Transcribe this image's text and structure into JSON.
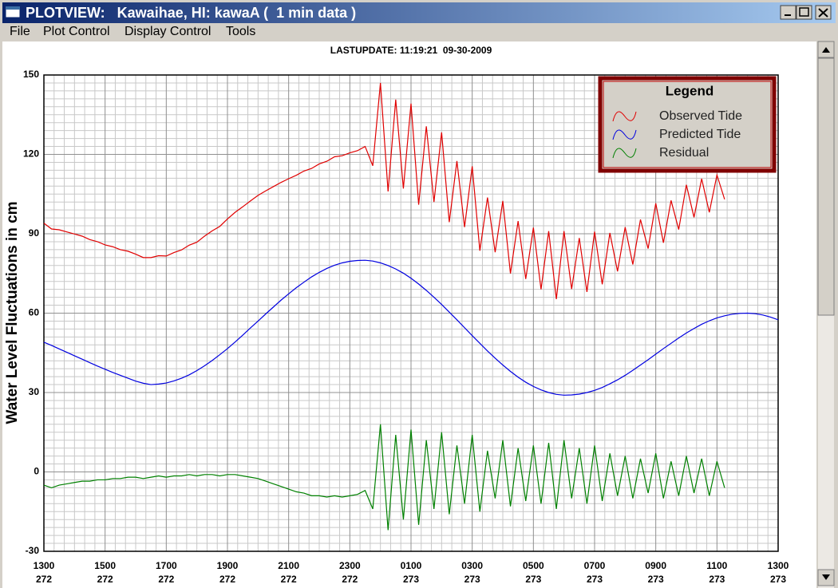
{
  "window": {
    "title": "PLOTVIEW:   Kawaihae, HI: kawaA (  1 min data )",
    "menu": [
      "File",
      "Plot Control",
      "Display Control",
      "Tools"
    ]
  },
  "chart_data": {
    "type": "line",
    "subtitle": "LASTUPDATE: 11:19:21  09-30-2009",
    "y_label": "Water Level Fluctuations in cm",
    "legend_title": "Legend",
    "legend": "upper right",
    "grid": true,
    "minor_grid": true,
    "xlim": [
      0,
      24
    ],
    "ylim": [
      -30,
      150
    ],
    "xticks": [
      {
        "value": 0,
        "label": "1300\n272"
      },
      {
        "value": 2,
        "label": "1500\n272"
      },
      {
        "value": 4,
        "label": "1700\n272"
      },
      {
        "value": 6,
        "label": "1900\n272"
      },
      {
        "value": 8,
        "label": "2100\n272"
      },
      {
        "value": 10,
        "label": "2300\n272"
      },
      {
        "value": 12,
        "label": "0100\n273"
      },
      {
        "value": 14,
        "label": "0300\n273"
      },
      {
        "value": 16,
        "label": "0500\n273"
      },
      {
        "value": 18,
        "label": "0700\n273"
      },
      {
        "value": 20,
        "label": "0900\n273"
      },
      {
        "value": 22,
        "label": "1100\n273"
      },
      {
        "value": 24,
        "label": "1300\n273"
      }
    ],
    "yticks": [
      150,
      120,
      90,
      60,
      30,
      0,
      -30
    ],
    "x": [
      0,
      0.25,
      0.5,
      0.75,
      1,
      1.25,
      1.5,
      1.75,
      2,
      2.25,
      2.5,
      2.75,
      3,
      3.25,
      3.5,
      3.75,
      4,
      4.25,
      4.5,
      4.75,
      5,
      5.25,
      5.5,
      5.75,
      6,
      6.25,
      6.5,
      6.75,
      7,
      7.25,
      7.5,
      7.75,
      8,
      8.25,
      8.5,
      8.75,
      9,
      9.25,
      9.5,
      9.75,
      10,
      10.25,
      10.5,
      10.75,
      11,
      11.25,
      11.5,
      11.75,
      12,
      12.25,
      12.5,
      12.75,
      13,
      13.25,
      13.5,
      13.75,
      14,
      14.25,
      14.5,
      14.75,
      15,
      15.25,
      15.5,
      15.75,
      16,
      16.25,
      16.5,
      16.75,
      17,
      17.25,
      17.5,
      17.75,
      18,
      18.25,
      18.5,
      18.75,
      19,
      19.25,
      19.5,
      19.75,
      20,
      20.25,
      20.5,
      20.75,
      21,
      21.25,
      21.5,
      21.75,
      22,
      22.25,
      22.5,
      22.75,
      23,
      23.25,
      23.5,
      23.75,
      24
    ],
    "series": [
      {
        "name": "Observed Tide",
        "color": "#e00000",
        "values": [
          94,
          91.8,
          91.5,
          90.7,
          89.9,
          89.1,
          87.8,
          87,
          85.8,
          85.1,
          84,
          83.4,
          82.3,
          81,
          81,
          81.7,
          81.6,
          82.9,
          83.9,
          85.7,
          86.8,
          89.1,
          91.1,
          92.8,
          95.6,
          98.1,
          100.2,
          102.4,
          104.5,
          106.2,
          107.8,
          109.4,
          110.8,
          112.1,
          113.7,
          114.7,
          116.4,
          117.4,
          119.1,
          119.5,
          120.6,
          121.4,
          123,
          115.7,
          147,
          106,
          140.7,
          107.1,
          139.2,
          101,
          130.6,
          102,
          128.3,
          94.4,
          117.5,
          92.5,
          115.5,
          83.6,
          103.7,
          83,
          102.4,
          75,
          94.8,
          72.9,
          92.3,
          69,
          91,
          65.3,
          91,
          69.1,
          88.4,
          68,
          90.8,
          70.9,
          90.3,
          75.8,
          92.5,
          78.4,
          95.4,
          84.4,
          101.5,
          86.6,
          102.6,
          91.6,
          108.5,
          96.2,
          110.8,
          98.1,
          112.2,
          103,
          null,
          null,
          null,
          null,
          null,
          null,
          null
        ]
      },
      {
        "name": "Predicted Tide",
        "color": "#0000e0",
        "values": [
          49,
          47.8,
          46.5,
          45.2,
          43.9,
          42.6,
          41.3,
          40,
          38.8,
          37.6,
          36.5,
          35.4,
          34.3,
          33.5,
          33,
          33.2,
          33.6,
          34.4,
          35.4,
          36.7,
          38.3,
          40.1,
          42.1,
          44.3,
          46.6,
          49.1,
          51.7,
          54.4,
          57,
          59.7,
          62.3,
          64.9,
          67.3,
          69.6,
          71.7,
          73.7,
          75.4,
          76.9,
          78.1,
          79,
          79.6,
          79.9,
          80,
          79.7,
          79,
          78,
          76.7,
          75.1,
          73.2,
          71,
          68.6,
          66,
          63.3,
          60.4,
          57.5,
          54.5,
          51.5,
          48.6,
          45.7,
          43,
          40.4,
          38,
          35.8,
          33.9,
          32.3,
          31,
          30,
          29.3,
          29,
          29.1,
          29.4,
          30,
          30.8,
          31.9,
          33.3,
          34.8,
          36.5,
          38.4,
          40.4,
          42.4,
          44.5,
          46.6,
          48.6,
          50.6,
          52.5,
          54.2,
          55.8,
          57.1,
          58.2,
          59,
          59.6,
          59.9,
          60,
          59.8,
          59.3,
          58.5,
          57.5
        ]
      },
      {
        "name": "Residual",
        "color": "#008000",
        "values": [
          -5,
          -6,
          -5,
          -4.5,
          -4,
          -3.5,
          -3.5,
          -3,
          -3,
          -2.5,
          -2.5,
          -2,
          -2,
          -2.5,
          -2,
          -1.5,
          -2,
          -1.5,
          -1.5,
          -1,
          -1.5,
          -1,
          -1,
          -1.5,
          -1,
          -1,
          -1.5,
          -2,
          -2.5,
          -3.5,
          -4.5,
          -5.5,
          -6.5,
          -7.5,
          -8,
          -9,
          -9,
          -9.5,
          -9,
          -9.5,
          -9,
          -8.5,
          -7,
          -14,
          18,
          -22,
          14,
          -18,
          16,
          -20,
          12,
          -14,
          15,
          -16,
          10,
          -12,
          14,
          -15,
          8,
          -10,
          12,
          -13,
          9,
          -11,
          10,
          -12,
          11,
          -14,
          12,
          -10,
          9,
          -12,
          10,
          -11,
          7,
          -9,
          6,
          -10,
          5,
          -8,
          7,
          -10,
          4,
          -9,
          6,
          -8,
          5,
          -9,
          4,
          -6,
          null,
          null,
          null,
          null,
          null,
          null,
          null
        ]
      }
    ]
  }
}
